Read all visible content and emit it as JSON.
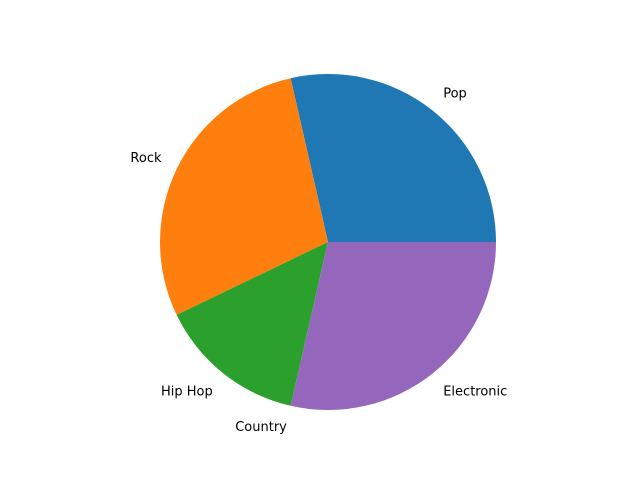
{
  "chart_data": {
    "type": "pie",
    "title": "",
    "start_angle_deg": 0,
    "direction": "counterclockwise",
    "slices": [
      {
        "label": "Pop",
        "value": 30,
        "color": "#1f77b4"
      },
      {
        "label": "Rock",
        "value": 30,
        "color": "#ff7f0e"
      },
      {
        "label": "Hip Hop",
        "value": 15,
        "color": "#2ca02c"
      },
      {
        "label": "Country",
        "value": 0,
        "color": "#d62728"
      },
      {
        "label": "Electronic",
        "value": 30,
        "color": "#9467bd"
      }
    ]
  }
}
